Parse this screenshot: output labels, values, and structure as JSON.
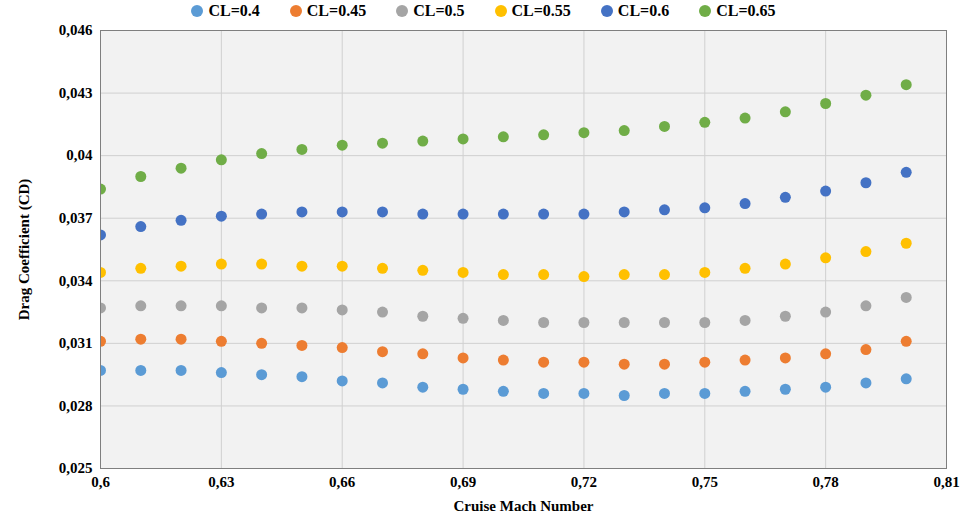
{
  "chart_data": {
    "type": "scatter",
    "x_label": "Cruise Mach Number",
    "y_label": "Drag Coefficient (CD)",
    "xlim": [
      0.6,
      0.81
    ],
    "xticks": [
      {
        "value": 0.6,
        "label": "0,6"
      },
      {
        "value": 0.63,
        "label": "0,63"
      },
      {
        "value": 0.66,
        "label": "0,66"
      },
      {
        "value": 0.69,
        "label": "0,69"
      },
      {
        "value": 0.72,
        "label": "0,72"
      },
      {
        "value": 0.75,
        "label": "0,75"
      },
      {
        "value": 0.78,
        "label": "0,78"
      },
      {
        "value": 0.81,
        "label": "0,81"
      }
    ],
    "ylim": [
      0.025,
      0.046
    ],
    "yticks": [
      {
        "value": 0.025,
        "label": "0,025"
      },
      {
        "value": 0.028,
        "label": "0,028"
      },
      {
        "value": 0.031,
        "label": "0,031"
      },
      {
        "value": 0.034,
        "label": "0,034"
      },
      {
        "value": 0.037,
        "label": "0,037"
      },
      {
        "value": 0.04,
        "label": "0,04"
      },
      {
        "value": 0.043,
        "label": "0,043"
      },
      {
        "value": 0.046,
        "label": "0,046"
      }
    ],
    "grid": true,
    "legend": "top",
    "marker": "circle",
    "x": [
      0.6,
      0.61,
      0.62,
      0.63,
      0.64,
      0.65,
      0.66,
      0.67,
      0.68,
      0.69,
      0.7,
      0.71,
      0.72,
      0.73,
      0.74,
      0.75,
      0.76,
      0.77,
      0.78,
      0.79,
      0.8
    ],
    "series": [
      {
        "name": "CL=0.4",
        "color": "#5b9bd5",
        "values": [
          0.0297,
          0.0297,
          0.0297,
          0.0296,
          0.0295,
          0.0294,
          0.0292,
          0.0291,
          0.0289,
          0.0288,
          0.0287,
          0.0286,
          0.0286,
          0.0285,
          0.0286,
          0.0286,
          0.0287,
          0.0288,
          0.0289,
          0.0291,
          0.0293
        ]
      },
      {
        "name": "CL=0.45",
        "color": "#ed7d31",
        "values": [
          0.0311,
          0.0312,
          0.0312,
          0.0311,
          0.031,
          0.0309,
          0.0308,
          0.0306,
          0.0305,
          0.0303,
          0.0302,
          0.0301,
          0.0301,
          0.03,
          0.03,
          0.0301,
          0.0302,
          0.0303,
          0.0305,
          0.0307,
          0.0311
        ]
      },
      {
        "name": "CL=0.5",
        "color": "#a5a5a5",
        "values": [
          0.0327,
          0.0328,
          0.0328,
          0.0328,
          0.0327,
          0.0327,
          0.0326,
          0.0325,
          0.0323,
          0.0322,
          0.0321,
          0.032,
          0.032,
          0.032,
          0.032,
          0.032,
          0.0321,
          0.0323,
          0.0325,
          0.0328,
          0.0332
        ]
      },
      {
        "name": "CL=0.55",
        "color": "#ffc000",
        "values": [
          0.0344,
          0.0346,
          0.0347,
          0.0348,
          0.0348,
          0.0347,
          0.0347,
          0.0346,
          0.0345,
          0.0344,
          0.0343,
          0.0343,
          0.0342,
          0.0343,
          0.0343,
          0.0344,
          0.0346,
          0.0348,
          0.0351,
          0.0354,
          0.0358
        ]
      },
      {
        "name": "CL=0.6",
        "color": "#4472c4",
        "values": [
          0.0362,
          0.0366,
          0.0369,
          0.0371,
          0.0372,
          0.0373,
          0.0373,
          0.0373,
          0.0372,
          0.0372,
          0.0372,
          0.0372,
          0.0372,
          0.0373,
          0.0374,
          0.0375,
          0.0377,
          0.038,
          0.0383,
          0.0387,
          0.0392
        ]
      },
      {
        "name": "CL=0.65",
        "color": "#70ad47",
        "values": [
          0.0384,
          0.039,
          0.0394,
          0.0398,
          0.0401,
          0.0403,
          0.0405,
          0.0406,
          0.0407,
          0.0408,
          0.0409,
          0.041,
          0.0411,
          0.0412,
          0.0414,
          0.0416,
          0.0418,
          0.0421,
          0.0425,
          0.0429,
          0.0434
        ]
      }
    ]
  }
}
